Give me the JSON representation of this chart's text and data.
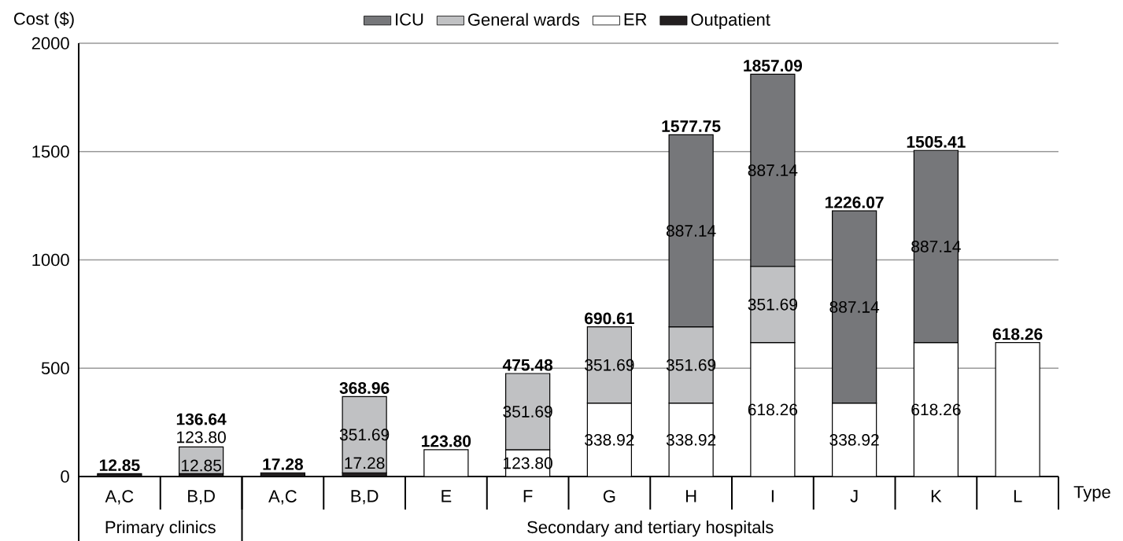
{
  "chart_data": {
    "type": "bar",
    "stacked": true,
    "ylabel": "Cost ($)",
    "xlabel": "Type",
    "categories": [
      "A,C",
      "B,D",
      "A,C",
      "B,D",
      "E",
      "F",
      "G",
      "H",
      "I",
      "J",
      "K",
      "L"
    ],
    "series": [
      {
        "name": "Outpatient",
        "color": "#231f20",
        "values": [
          12.85,
          12.85,
          17.28,
          17.28,
          null,
          null,
          null,
          null,
          null,
          null,
          null,
          null
        ],
        "value_labels": [
          null,
          "12.85",
          null,
          "17.28",
          null,
          null,
          null,
          null,
          null,
          null,
          null,
          null
        ]
      },
      {
        "name": "ER",
        "color": "#ffffff",
        "values": [
          null,
          null,
          null,
          null,
          123.8,
          123.8,
          338.92,
          338.92,
          618.26,
          338.92,
          618.26,
          618.26
        ],
        "value_labels": [
          null,
          null,
          null,
          null,
          null,
          "123.80",
          "338.92",
          "338.92",
          "618.26",
          "338.92",
          "618.26",
          null
        ]
      },
      {
        "name": "General wards",
        "color": "#c0c1c3",
        "values": [
          null,
          123.8,
          null,
          351.69,
          null,
          351.69,
          351.69,
          351.69,
          351.69,
          null,
          null,
          null
        ],
        "value_labels": [
          null,
          "123.80",
          null,
          "351.69",
          null,
          "351.69",
          "351.69",
          "351.69",
          "351.69",
          null,
          null,
          null
        ]
      },
      {
        "name": "ICU",
        "color": "#76777a",
        "values": [
          null,
          null,
          null,
          null,
          null,
          null,
          null,
          887.14,
          887.14,
          887.14,
          887.14,
          null
        ],
        "value_labels": [
          null,
          null,
          null,
          null,
          null,
          null,
          null,
          "887.14",
          "887.14",
          "887.14",
          "887.14",
          null
        ]
      }
    ],
    "totals": [
      "12.85",
      "136.64",
      "17.28",
      "368.96",
      "123.80",
      "475.48",
      "690.61",
      "1577.75",
      "1857.09",
      "1226.07",
      "1505.41",
      "618.26"
    ],
    "annotations": [
      "Primary clinics",
      "Secondary and tertiary hospitals"
    ],
    "ylim": [
      0,
      2000
    ],
    "yticks": [
      0,
      500,
      1000,
      1500,
      2000
    ],
    "grid": "y",
    "legend": "top"
  }
}
